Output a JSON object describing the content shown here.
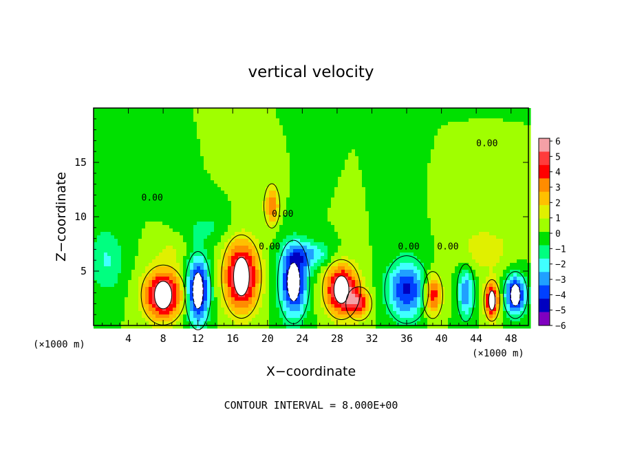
{
  "chart_data": {
    "type": "heatmap",
    "title": "vertical velocity",
    "xlabel": "X−coordinate",
    "ylabel": "Z−coordinate",
    "x_unit_label": "(×1000 m)",
    "x_unit_label_right": "(×1000 m)",
    "footer": "CONTOUR INTERVAL = 8.000E+00",
    "xlim": [
      0,
      50
    ],
    "ylim": [
      0,
      20
    ],
    "x_ticks": [
      4,
      8,
      12,
      16,
      20,
      24,
      28,
      32,
      36,
      40,
      44,
      48
    ],
    "y_ticks": [
      5,
      10,
      15
    ],
    "colorbar": {
      "min": -6,
      "max": 6,
      "labels": [
        "6",
        "5",
        "4",
        "3",
        "2",
        "1",
        "0",
        "−1",
        "−2",
        "−3",
        "−4",
        "−5",
        "−6"
      ],
      "colors": [
        "#f4a0a6",
        "#ff3c3c",
        "#ff0000",
        "#ff8c00",
        "#ffc000",
        "#e0f000",
        "#a0ff00",
        "#00e000",
        "#00ff80",
        "#40ffff",
        "#20a0ff",
        "#0040ff",
        "#0000c0",
        "#8000c0"
      ]
    },
    "contour_labels": [
      "0.00",
      "0.00",
      "0.00",
      "0.00",
      "0.00",
      "0.00"
    ],
    "features": [
      {
        "x": 8,
        "z": 2.8,
        "w": 6,
        "sx": 2.2,
        "sz": 2.3
      },
      {
        "x": 12,
        "z": 3.2,
        "w": -6,
        "sx": 1.3,
        "sz": 3.0
      },
      {
        "x": 17,
        "z": 4.5,
        "w": 6,
        "sx": 2.0,
        "sz": 3.2
      },
      {
        "x": 23,
        "z": 4.0,
        "w": -5.5,
        "sx": 1.6,
        "sz": 3.2
      },
      {
        "x": 28.5,
        "z": 3.3,
        "w": 6,
        "sx": 1.9,
        "sz": 2.3
      },
      {
        "x": 30.5,
        "z": 2.0,
        "w": 3.5,
        "sx": 1.3,
        "sz": 1.3
      },
      {
        "x": 36,
        "z": 3.3,
        "w": -4.5,
        "sx": 2.2,
        "sz": 2.6
      },
      {
        "x": 39,
        "z": 2.8,
        "w": 4.5,
        "sx": 1.0,
        "sz": 1.8
      },
      {
        "x": 42.8,
        "z": 3.0,
        "w": -3.5,
        "sx": 0.9,
        "sz": 2.2
      },
      {
        "x": 45.8,
        "z": 2.3,
        "w": 6,
        "sx": 0.8,
        "sz": 1.6
      },
      {
        "x": 48.5,
        "z": 2.8,
        "w": -5.5,
        "sx": 1.2,
        "sz": 1.8
      },
      {
        "x": 20.5,
        "z": 11.0,
        "w": 3.5,
        "sx": 0.8,
        "sz": 1.7
      },
      {
        "x": 1.5,
        "z": 6.0,
        "w": -1.8,
        "sx": 2.0,
        "sz": 3.0
      },
      {
        "x": 25,
        "z": 6.5,
        "w": -2.5,
        "sx": 2.5,
        "sz": 1.2
      },
      {
        "x": 13,
        "z": 9.0,
        "w": -1.0,
        "sx": 3.0,
        "sz": 1.5
      },
      {
        "x": 45,
        "z": 7.0,
        "w": 1.5,
        "sx": 3.0,
        "sz": 2.0
      },
      {
        "x": 9,
        "z": 7.0,
        "w": 0.8,
        "sx": 2.0,
        "sz": 1.5
      }
    ]
  }
}
